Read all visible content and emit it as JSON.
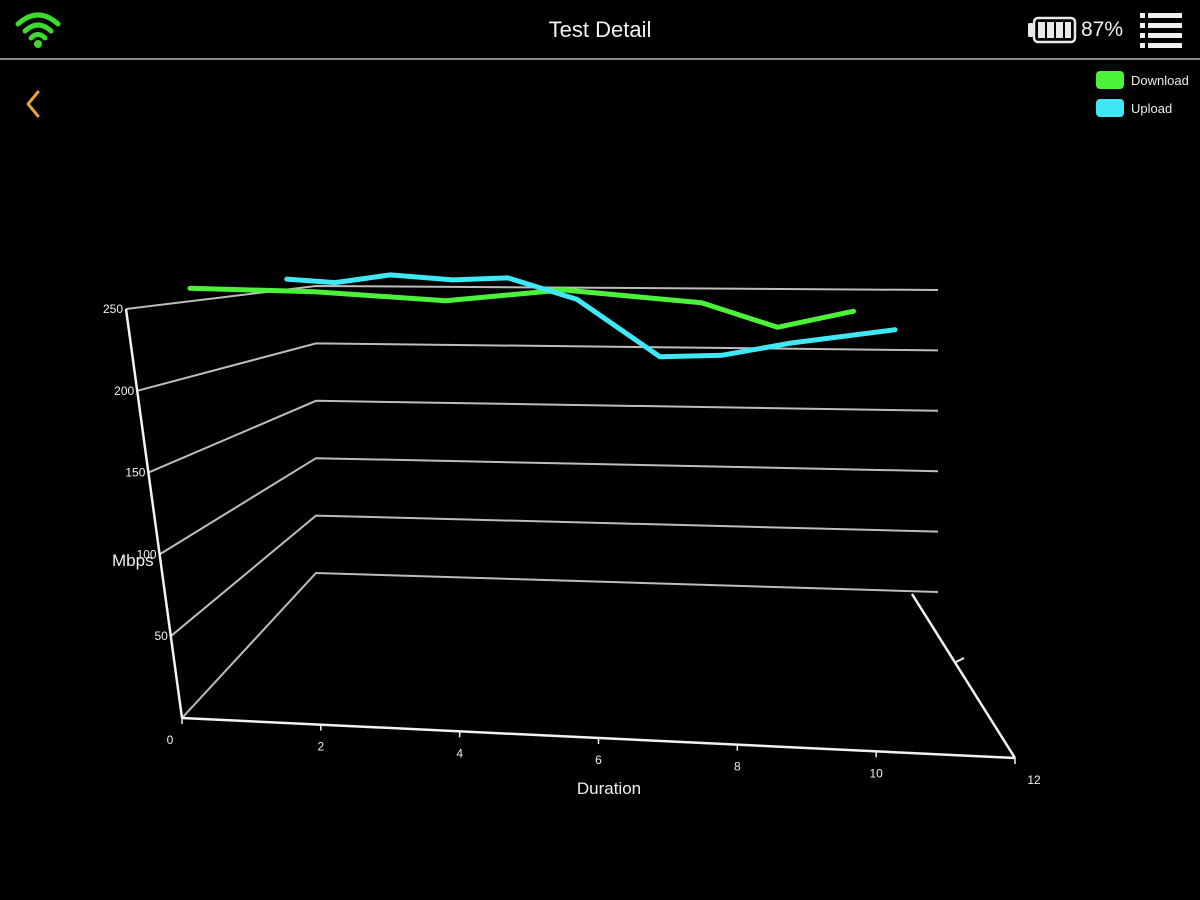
{
  "header": {
    "title": "Test Detail",
    "battery_percent": "87%",
    "battery_level": 0.87,
    "icons": [
      "wifi-icon",
      "battery-icon",
      "menu-icon",
      "back-arrow-icon"
    ]
  },
  "colors": {
    "background": "#000000",
    "accent_back": "#E8A33A",
    "wifi": "#3DDB2E",
    "download": "#4CF23A",
    "upload": "#3EE8F4",
    "grid": "#BDBDBD"
  },
  "legend": [
    {
      "label": "Download",
      "color": "#4CF23A"
    },
    {
      "label": "Upload",
      "color": "#3EE8F4"
    }
  ],
  "chart_data": {
    "type": "line",
    "ylabel": "Mbps",
    "xlabel": "Duration",
    "ylim": [
      0,
      250
    ],
    "xlim": [
      0,
      12
    ],
    "yticks": [
      "50",
      "100",
      "150",
      "200",
      "250"
    ],
    "xticks": [
      "0",
      "2",
      "4",
      "6",
      "8",
      "10",
      "12"
    ],
    "grid": true,
    "legend_position": "top-right",
    "series": [
      {
        "name": "Download",
        "color": "#4CF23A",
        "points": [
          [
            0.1,
            248
          ],
          [
            1.9,
            245
          ],
          [
            3.8,
            238
          ],
          [
            5.5,
            248
          ],
          [
            7.5,
            238
          ],
          [
            8.6,
            218
          ],
          [
            9.7,
            232
          ]
        ]
      },
      {
        "name": "Upload",
        "color": "#3EE8F4",
        "points": [
          [
            1.5,
            256
          ],
          [
            2.2,
            253
          ],
          [
            3.0,
            260
          ],
          [
            3.9,
            256
          ],
          [
            4.7,
            258
          ],
          [
            5.7,
            240
          ],
          [
            6.9,
            192
          ],
          [
            7.8,
            194
          ],
          [
            8.8,
            205
          ],
          [
            10.3,
            217
          ]
        ]
      }
    ]
  }
}
